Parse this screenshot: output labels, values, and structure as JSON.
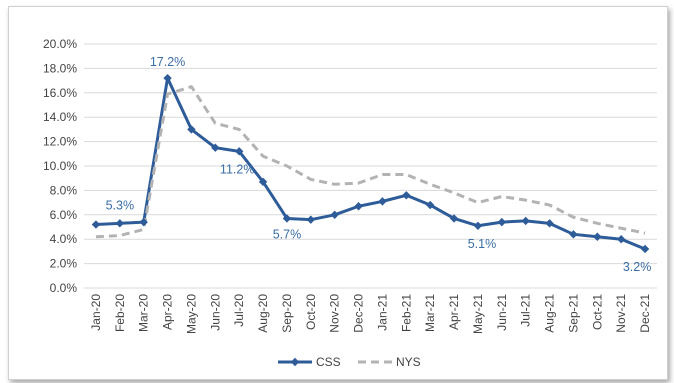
{
  "chart_data": {
    "type": "line",
    "title": "",
    "xlabel": "",
    "ylabel": "",
    "ylim": [
      0,
      0.2
    ],
    "y_ticks": [
      0,
      0.02,
      0.04,
      0.06,
      0.08,
      0.1,
      0.12,
      0.14,
      0.16,
      0.18,
      0.2
    ],
    "y_tick_labels": [
      "0.0%",
      "2.0%",
      "4.0%",
      "6.0%",
      "8.0%",
      "10.0%",
      "12.0%",
      "14.0%",
      "16.0%",
      "18.0%",
      "20.0%"
    ],
    "categories": [
      "Jan-20",
      "Feb-20",
      "Mar-20",
      "Apr-20",
      "May-20",
      "Jun-20",
      "Jul-20",
      "Aug-20",
      "Sep-20",
      "Oct-20",
      "Nov-20",
      "Dec-20",
      "Jan-21",
      "Feb-21",
      "Mar-21",
      "Apr-21",
      "May-21",
      "Jun-21",
      "Jul-21",
      "Aug-21",
      "Sep-21",
      "Oct-21",
      "Nov-21",
      "Dec-21"
    ],
    "series": [
      {
        "name": "CSS",
        "color": "#2e5c99",
        "style": "solid-with-diamond-markers",
        "values": [
          0.052,
          0.053,
          0.054,
          0.172,
          0.13,
          0.115,
          0.112,
          0.087,
          0.057,
          0.056,
          0.06,
          0.067,
          0.071,
          0.076,
          0.068,
          0.057,
          0.051,
          0.054,
          0.055,
          0.053,
          0.044,
          0.042,
          0.04,
          0.032
        ]
      },
      {
        "name": "NYS",
        "color": "#b3b3b3",
        "style": "dashed",
        "values": [
          0.042,
          0.043,
          0.048,
          0.159,
          0.165,
          0.135,
          0.13,
          0.108,
          0.1,
          0.089,
          0.085,
          0.086,
          0.093,
          0.093,
          0.085,
          0.078,
          0.07,
          0.075,
          0.072,
          0.068,
          0.058,
          0.053,
          0.049,
          0.045
        ]
      }
    ],
    "data_labels": [
      {
        "series": "CSS",
        "index": 1,
        "text": "5.3%"
      },
      {
        "series": "CSS",
        "index": 3,
        "text": "17.2%"
      },
      {
        "series": "CSS",
        "index": 6,
        "text": "11.2%"
      },
      {
        "series": "CSS",
        "index": 8,
        "text": "5.7%"
      },
      {
        "series": "CSS",
        "index": 16,
        "text": "5.1%"
      },
      {
        "series": "CSS",
        "index": 23,
        "text": "3.2%"
      }
    ],
    "grid": "horizontal",
    "legend": "bottom-center"
  }
}
